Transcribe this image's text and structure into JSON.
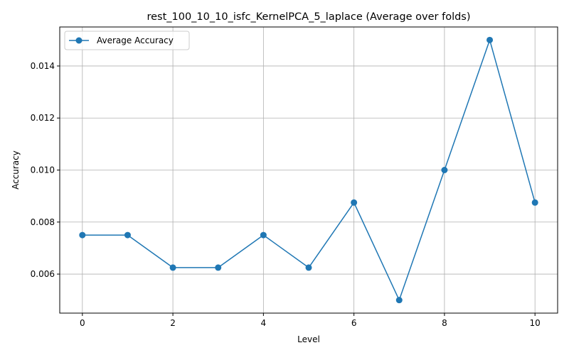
{
  "chart_data": {
    "type": "line",
    "title": "rest_100_10_10_isfc_KernelPCA_5_laplace (Average over folds)",
    "xlabel": "Level",
    "ylabel": "Accuracy",
    "x": [
      0,
      1,
      2,
      3,
      4,
      5,
      6,
      7,
      8,
      9,
      10
    ],
    "series": [
      {
        "name": "Average Accuracy",
        "color": "#1f77b4",
        "marker": "circle",
        "values": [
          0.0075,
          0.0075,
          0.00625,
          0.00625,
          0.0075,
          0.00625,
          0.00875,
          0.005,
          0.01,
          0.015,
          0.00875
        ]
      }
    ],
    "xlim": [
      -0.5,
      10.5
    ],
    "ylim": [
      0.0045,
      0.0155
    ],
    "xticks": [
      0,
      2,
      4,
      6,
      8,
      10
    ],
    "xtick_labels": [
      "0",
      "2",
      "4",
      "6",
      "8",
      "10"
    ],
    "yticks": [
      0.006,
      0.008,
      0.01,
      0.012,
      0.014
    ],
    "ytick_labels": [
      "0.006",
      "0.008",
      "0.010",
      "0.012",
      "0.014"
    ],
    "grid": true,
    "legend_position": "top-left"
  }
}
